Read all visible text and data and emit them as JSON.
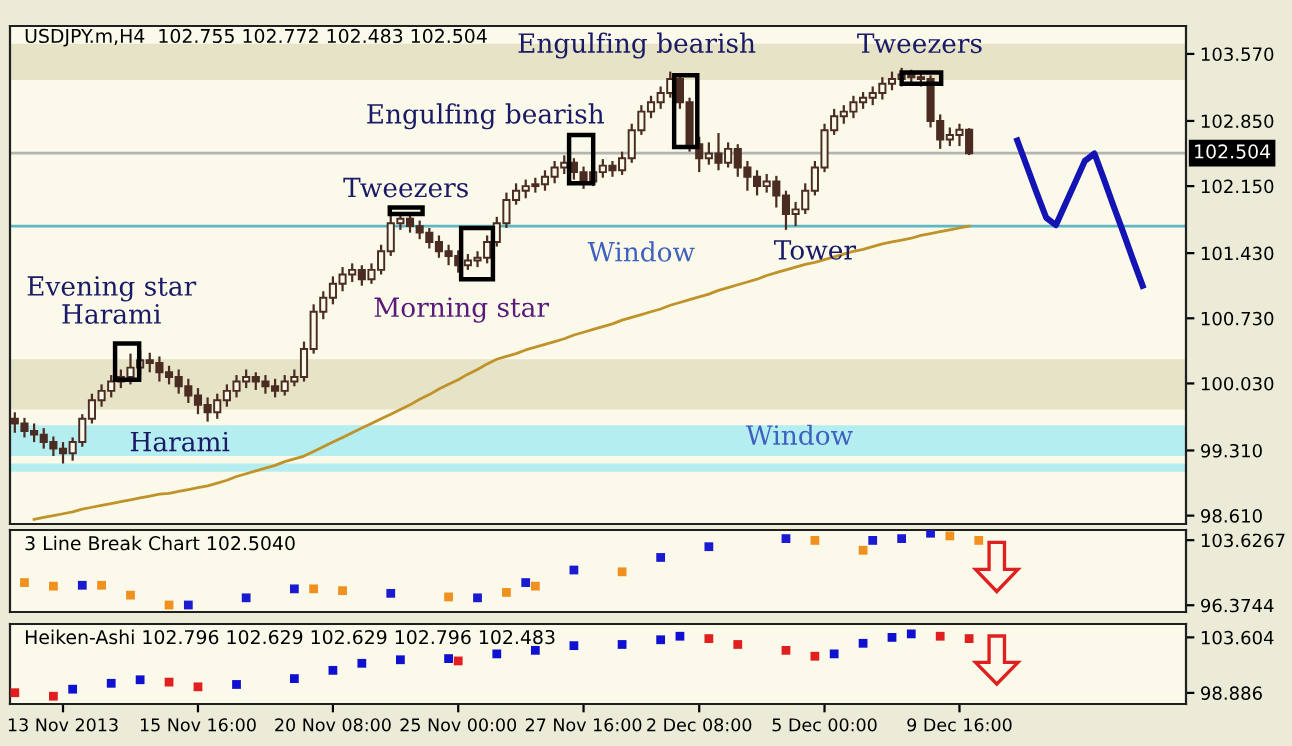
{
  "chart_data": [
    {
      "type": "candlestick",
      "title": "USDJPY.m,H4  102.755 102.772 102.483 102.504",
      "categories": [
        null,
        null,
        null,
        null,
        null,
        null,
        null,
        null,
        null,
        null,
        null,
        null,
        null,
        null,
        null,
        null,
        null,
        null,
        null,
        null,
        null,
        null,
        null,
        null,
        null,
        null,
        null,
        null,
        null,
        null,
        null,
        null,
        null,
        null,
        null,
        null,
        null,
        null,
        null,
        null,
        null,
        null,
        null,
        null,
        null,
        null,
        null,
        null,
        null,
        null,
        null,
        null,
        null,
        null,
        null,
        null,
        null,
        null,
        null,
        null,
        null,
        null,
        null,
        null,
        null,
        null,
        null,
        null,
        null,
        null,
        null,
        null,
        null,
        null,
        null,
        null,
        null,
        null,
        null,
        null,
        null,
        null,
        null,
        null,
        null,
        null,
        null,
        null,
        null,
        null,
        null,
        null,
        null,
        null,
        null,
        null,
        null,
        null,
        null,
        null,
        null,
        null,
        null,
        null,
        null,
        null,
        null,
        null,
        null,
        null,
        null,
        null,
        null,
        null,
        null,
        null,
        null,
        null,
        null,
        null,
        null,
        null
      ],
      "ylim": [
        98.52,
        103.87
      ],
      "yticks": [
        {
          "value": 98.61,
          "label": "98.610"
        },
        {
          "value": 99.31,
          "label": "99.310"
        },
        {
          "value": 100.03,
          "label": "100.030"
        },
        {
          "value": 100.73,
          "label": "100.730"
        },
        {
          "value": 101.43,
          "label": "101.430"
        },
        {
          "value": 102.15,
          "label": "102.150"
        },
        {
          "value": 102.85,
          "label": "102.850"
        },
        {
          "value": 103.57,
          "label": "103.570"
        }
      ],
      "tick_labels": "y",
      "series": [
        {
          "type": "line",
          "color": "#c0922a",
          "values": [
            null,
            null,
            98.57,
            98.59,
            98.61,
            98.63,
            98.65,
            98.68,
            98.7,
            98.72,
            98.74,
            98.76,
            98.78,
            98.8,
            98.82,
            98.84,
            98.85,
            98.87,
            98.89,
            98.91,
            98.93,
            98.96,
            98.99,
            99.03,
            99.06,
            99.09,
            99.12,
            99.15,
            99.19,
            99.22,
            99.25,
            99.3,
            99.35,
            99.4,
            99.45,
            99.5,
            99.55,
            99.6,
            99.65,
            99.7,
            99.75,
            99.8,
            99.86,
            99.91,
            99.97,
            100.02,
            100.07,
            100.13,
            100.18,
            100.24,
            100.29,
            100.32,
            100.35,
            100.39,
            100.42,
            100.45,
            100.48,
            100.51,
            100.55,
            100.58,
            100.61,
            100.64,
            100.67,
            100.71,
            100.74,
            100.77,
            100.8,
            100.83,
            100.87,
            100.9,
            100.93,
            100.96,
            100.99,
            101.03,
            101.06,
            101.09,
            101.12,
            101.15,
            101.19,
            101.22,
            101.25,
            101.28,
            101.31,
            101.33,
            101.36,
            101.39,
            101.42,
            101.45,
            101.47,
            101.5,
            101.53,
            101.55,
            101.57,
            101.59,
            101.62,
            101.64,
            101.66,
            101.68,
            101.7,
            101.72,
            null,
            null,
            null,
            null,
            null,
            null,
            null,
            null,
            null,
            null,
            null,
            null,
            null,
            null,
            null,
            null,
            null,
            null,
            null,
            null,
            null,
            null
          ]
        },
        {
          "type": "candlestick",
          "color": "#4a2c22",
          "ohlc": [
            [
              99.65,
              99.72,
              99.5,
              99.6
            ],
            [
              99.6,
              99.66,
              99.45,
              99.52
            ],
            [
              99.52,
              99.6,
              99.4,
              99.48
            ],
            [
              99.48,
              99.55,
              99.33,
              99.4
            ],
            [
              99.4,
              99.46,
              99.25,
              99.33
            ],
            [
              99.33,
              99.4,
              99.17,
              99.28
            ],
            [
              99.28,
              99.45,
              99.2,
              99.4
            ],
            [
              99.4,
              99.7,
              99.35,
              99.65
            ],
            [
              99.65,
              99.92,
              99.6,
              99.85
            ],
            [
              99.85,
              100.02,
              99.78,
              99.95
            ],
            [
              99.95,
              100.12,
              99.88,
              100.05
            ],
            [
              100.05,
              100.18,
              99.98,
              100.1
            ],
            [
              100.1,
              100.35,
              100.02,
              100.2
            ],
            [
              100.2,
              100.38,
              100.12,
              100.28
            ],
            [
              100.28,
              100.36,
              100.15,
              100.25
            ],
            [
              100.25,
              100.32,
              100.05,
              100.15
            ],
            [
              100.15,
              100.22,
              100.02,
              100.1
            ],
            [
              100.1,
              100.18,
              99.92,
              100.0
            ],
            [
              100.0,
              100.08,
              99.82,
              99.9
            ],
            [
              99.9,
              99.98,
              99.7,
              99.8
            ],
            [
              99.8,
              99.88,
              99.62,
              99.72
            ],
            [
              99.72,
              99.92,
              99.65,
              99.85
            ],
            [
              99.85,
              100.02,
              99.78,
              99.95
            ],
            [
              99.95,
              100.12,
              99.88,
              100.05
            ],
            [
              100.05,
              100.18,
              99.98,
              100.1
            ],
            [
              100.1,
              100.15,
              99.96,
              100.05
            ],
            [
              100.05,
              100.12,
              99.92,
              100.0
            ],
            [
              100.0,
              100.08,
              99.88,
              99.95
            ],
            [
              99.95,
              100.12,
              99.9,
              100.05
            ],
            [
              100.05,
              100.18,
              100.0,
              100.1
            ],
            [
              100.1,
              100.48,
              100.05,
              100.4
            ],
            [
              100.4,
              100.88,
              100.35,
              100.8
            ],
            [
              100.8,
              101.02,
              100.72,
              100.95
            ],
            [
              100.95,
              101.18,
              100.88,
              101.1
            ],
            [
              101.1,
              101.28,
              101.02,
              101.2
            ],
            [
              101.2,
              101.32,
              101.12,
              101.25
            ],
            [
              101.25,
              101.3,
              101.08,
              101.15
            ],
            [
              101.15,
              101.32,
              101.1,
              101.25
            ],
            [
              101.25,
              101.52,
              101.2,
              101.45
            ],
            [
              101.45,
              101.85,
              101.4,
              101.75
            ],
            [
              101.75,
              101.86,
              101.68,
              101.8
            ],
            [
              101.8,
              101.85,
              101.65,
              101.72
            ],
            [
              101.72,
              101.78,
              101.58,
              101.65
            ],
            [
              101.65,
              101.7,
              101.48,
              101.55
            ],
            [
              101.55,
              101.62,
              101.38,
              101.45
            ],
            [
              101.45,
              101.52,
              101.3,
              101.4
            ],
            [
              101.4,
              101.46,
              101.22,
              101.3
            ],
            [
              101.3,
              101.42,
              101.25,
              101.35
            ],
            [
              101.35,
              101.45,
              101.28,
              101.38
            ],
            [
              101.38,
              101.62,
              101.32,
              101.55
            ],
            [
              101.55,
              101.82,
              101.5,
              101.75
            ],
            [
              101.75,
              102.08,
              101.7,
              102.0
            ],
            [
              102.0,
              102.18,
              101.95,
              102.1
            ],
            [
              102.1,
              102.22,
              102.02,
              102.15
            ],
            [
              102.15,
              102.24,
              102.08,
              102.17
            ],
            [
              102.17,
              102.32,
              102.1,
              102.25
            ],
            [
              102.25,
              102.42,
              102.18,
              102.35
            ],
            [
              102.35,
              102.48,
              102.28,
              102.4
            ],
            [
              102.4,
              102.45,
              102.22,
              102.3
            ],
            [
              102.3,
              102.36,
              102.12,
              102.2
            ],
            [
              102.2,
              102.38,
              102.15,
              102.3
            ],
            [
              102.3,
              102.44,
              102.24,
              102.37
            ],
            [
              102.37,
              102.42,
              102.25,
              102.32
            ],
            [
              102.32,
              102.52,
              102.27,
              102.45
            ],
            [
              102.45,
              102.82,
              102.4,
              102.75
            ],
            [
              102.75,
              103.02,
              102.7,
              102.95
            ],
            [
              102.95,
              103.12,
              102.88,
              103.05
            ],
            [
              103.05,
              103.22,
              102.98,
              103.15
            ],
            [
              103.15,
              103.38,
              103.1,
              103.3
            ],
            [
              103.3,
              103.35,
              102.98,
              103.05
            ],
            [
              103.05,
              103.1,
              102.52,
              102.6
            ],
            [
              102.6,
              102.68,
              102.3,
              102.45
            ],
            [
              102.45,
              102.62,
              102.38,
              102.5
            ],
            [
              102.5,
              102.72,
              102.32,
              102.4
            ],
            [
              102.4,
              102.62,
              102.35,
              102.55
            ],
            [
              102.55,
              102.6,
              102.25,
              102.35
            ],
            [
              102.35,
              102.42,
              102.1,
              102.25
            ],
            [
              102.25,
              102.32,
              102.05,
              102.15
            ],
            [
              102.15,
              102.28,
              102.08,
              102.2
            ],
            [
              102.2,
              102.26,
              101.92,
              102.05
            ],
            [
              102.05,
              102.1,
              101.68,
              101.85
            ],
            [
              101.85,
              101.98,
              101.72,
              101.9
            ],
            [
              101.9,
              102.18,
              101.85,
              102.1
            ],
            [
              102.1,
              102.42,
              102.05,
              102.35
            ],
            [
              102.35,
              102.82,
              102.3,
              102.75
            ],
            [
              102.75,
              102.98,
              102.7,
              102.9
            ],
            [
              102.9,
              103.02,
              102.82,
              102.95
            ],
            [
              102.95,
              103.12,
              102.88,
              103.05
            ],
            [
              103.05,
              103.16,
              102.98,
              103.1
            ],
            [
              103.1,
              103.22,
              103.02,
              103.15
            ],
            [
              103.15,
              103.32,
              103.08,
              103.25
            ],
            [
              103.25,
              103.38,
              103.18,
              103.3
            ],
            [
              103.3,
              103.42,
              103.22,
              103.35
            ],
            [
              103.35,
              103.4,
              103.25,
              103.32
            ],
            [
              103.32,
              103.38,
              103.22,
              103.3
            ],
            [
              103.3,
              103.34,
              102.78,
              102.85
            ],
            [
              102.85,
              102.92,
              102.55,
              102.65
            ],
            [
              102.65,
              102.78,
              102.58,
              102.7
            ],
            [
              102.7,
              102.82,
              102.58,
              102.755
            ],
            [
              102.755,
              102.772,
              102.483,
              102.504
            ],
            null,
            null,
            null,
            null,
            null,
            null,
            null,
            null,
            null,
            null,
            null,
            null,
            null,
            null,
            null,
            null,
            null,
            null,
            null,
            null,
            null,
            null
          ]
        },
        {
          "type": "line",
          "color": "#1414b4",
          "values": [
            null,
            null,
            null,
            null,
            null,
            null,
            null,
            null,
            null,
            null,
            null,
            null,
            null,
            null,
            null,
            null,
            null,
            null,
            null,
            null,
            null,
            null,
            null,
            null,
            null,
            null,
            null,
            null,
            null,
            null,
            null,
            null,
            null,
            null,
            null,
            null,
            null,
            null,
            null,
            null,
            null,
            null,
            null,
            null,
            null,
            null,
            null,
            null,
            null,
            null,
            null,
            null,
            null,
            null,
            null,
            null,
            null,
            null,
            null,
            null,
            null,
            null,
            null,
            null,
            null,
            null,
            null,
            null,
            null,
            null,
            null,
            null,
            null,
            null,
            null,
            null,
            null,
            null,
            null,
            null,
            null,
            null,
            null,
            null,
            null,
            null,
            null,
            null,
            null,
            null,
            null,
            null,
            null,
            null,
            null,
            null,
            null,
            null,
            null,
            null,
            null,
            null,
            null,
            null,
            102.64,
            102.36,
            102.08,
            101.81,
            101.73,
            101.96,
            102.19,
            102.42,
            102.5,
            102.22,
            101.93,
            101.65,
            101.36,
            101.08,
            null,
            null,
            null,
            null
          ]
        }
      ],
      "bands": [
        {
          "axis": "y",
          "from": 103.29,
          "to": 103.68,
          "color": "#e6e3c6"
        },
        {
          "axis": "y",
          "from": 99.75,
          "to": 100.29,
          "color": "#e6e3c6"
        },
        {
          "axis": "y",
          "from": 99.25,
          "to": 99.58,
          "color": "#b4eef0"
        },
        {
          "axis": "y",
          "from": 99.08,
          "to": 99.17,
          "color": "#b4eef0"
        }
      ],
      "ref_lines": [
        {
          "axis": "y",
          "value": 102.504,
          "label": "102.504",
          "color": "#b4b4b4"
        },
        {
          "axis": "y",
          "value": 101.72,
          "color": "#5fb7c3"
        }
      ],
      "annotations": [
        "Evening star\nHarami",
        "Harami",
        "Tweezers",
        "Morning star",
        "Engulfing bearish",
        "Engulfing bearish",
        "Window",
        "Tower",
        "Tweezers",
        "Window"
      ]
    },
    {
      "type": "scatter",
      "title": "3 Line Break Chart 102.5040",
      "marker": "square",
      "categories": [
        null,
        null,
        null,
        null,
        null,
        null,
        null,
        null,
        null,
        null,
        null,
        null,
        null,
        null,
        null,
        null,
        null,
        null,
        null,
        null,
        null,
        null,
        null,
        null,
        null,
        null,
        null,
        null,
        null,
        null,
        null,
        null,
        null,
        null,
        null,
        null,
        null,
        null,
        null,
        null,
        null,
        null,
        null,
        null,
        null,
        null,
        null,
        null,
        null,
        null,
        null,
        null,
        null,
        null,
        null,
        null,
        null,
        null,
        null,
        null,
        null,
        null,
        null,
        null,
        null,
        null,
        null,
        null,
        null,
        null,
        null,
        null,
        null,
        null,
        null,
        null,
        null,
        null,
        null,
        null,
        null,
        null,
        null,
        null,
        null,
        null,
        null,
        null,
        null,
        null,
        null,
        null,
        null,
        null,
        null,
        null,
        null,
        null,
        null,
        null,
        null,
        null,
        null,
        null,
        null,
        null,
        null,
        null,
        null,
        null,
        null,
        null,
        null,
        null,
        null,
        null,
        null,
        null,
        null,
        null,
        null,
        null
      ],
      "ylim": [
        95.62,
        104.76
      ],
      "yticks": [
        96.3744,
        103.6267
      ],
      "tick_labels": "y",
      "series": [
        {
          "color": "#f0901e",
          "values": [
            null,
            98.9,
            null,
            null,
            98.5,
            null,
            null,
            null,
            null,
            98.6,
            null,
            null,
            97.5,
            null,
            null,
            null,
            96.4,
            null,
            null,
            null,
            null,
            null,
            null,
            null,
            null,
            null,
            null,
            null,
            null,
            null,
            null,
            98.2,
            null,
            null,
            98.0,
            null,
            null,
            null,
            null,
            null,
            null,
            null,
            null,
            null,
            null,
            97.3,
            null,
            null,
            null,
            null,
            null,
            97.8,
            null,
            null,
            98.5,
            null,
            null,
            null,
            null,
            null,
            null,
            null,
            null,
            100.1,
            null,
            null,
            null,
            null,
            null,
            null,
            null,
            null,
            null,
            null,
            null,
            null,
            null,
            null,
            null,
            null,
            null,
            null,
            null,
            103.6,
            null,
            null,
            null,
            null,
            102.5,
            null,
            null,
            null,
            null,
            null,
            null,
            null,
            null,
            104.1,
            null,
            null,
            103.6,
            null,
            null,
            null,
            null,
            null,
            null,
            null,
            null,
            null,
            null,
            null,
            null,
            null,
            null,
            null,
            null,
            null,
            null,
            null,
            null,
            null
          ]
        },
        {
          "color": "#1a1ad0",
          "values": [
            null,
            null,
            null,
            null,
            null,
            null,
            null,
            98.6,
            null,
            null,
            null,
            null,
            null,
            null,
            null,
            null,
            null,
            null,
            96.4,
            null,
            null,
            null,
            null,
            null,
            97.2,
            null,
            null,
            null,
            null,
            98.2,
            null,
            null,
            null,
            null,
            null,
            null,
            null,
            null,
            null,
            97.7,
            null,
            null,
            null,
            null,
            null,
            null,
            null,
            null,
            97.2,
            null,
            null,
            null,
            null,
            98.9,
            null,
            null,
            null,
            null,
            100.3,
            null,
            null,
            null,
            null,
            null,
            null,
            null,
            null,
            101.7,
            null,
            null,
            null,
            null,
            102.9,
            null,
            null,
            null,
            null,
            null,
            null,
            null,
            103.8,
            null,
            null,
            null,
            null,
            null,
            null,
            null,
            null,
            103.6,
            null,
            null,
            103.8,
            null,
            null,
            104.4,
            null,
            null,
            null,
            null,
            null,
            null,
            null,
            null,
            null,
            null,
            null,
            null,
            null,
            null,
            null,
            null,
            null,
            null,
            null,
            null,
            null,
            null,
            null,
            null,
            null,
            null
          ]
        }
      ]
    },
    {
      "type": "scatter",
      "title": "Heiken-Ashi 102.796 102.629 102.629 102.796 102.483",
      "marker": "square",
      "categories": [
        null,
        null,
        null,
        null,
        null,
        "13 Nov 2013",
        null,
        null,
        null,
        null,
        null,
        null,
        null,
        null,
        null,
        null,
        null,
        null,
        null,
        "15 Nov 16:00",
        null,
        null,
        null,
        null,
        null,
        null,
        null,
        null,
        null,
        null,
        null,
        null,
        null,
        "20 Nov 08:00",
        null,
        null,
        null,
        null,
        null,
        null,
        null,
        null,
        null,
        null,
        null,
        null,
        "25 Nov 00:00",
        null,
        null,
        null,
        null,
        null,
        null,
        null,
        null,
        null,
        null,
        null,
        null,
        "27 Nov 16:00",
        null,
        null,
        null,
        null,
        null,
        null,
        null,
        null,
        null,
        null,
        null,
        "2 Dec 08:00",
        null,
        null,
        null,
        null,
        null,
        null,
        null,
        null,
        null,
        null,
        null,
        null,
        "5 Dec 00:00",
        null,
        null,
        null,
        null,
        null,
        null,
        null,
        null,
        null,
        null,
        null,
        null,
        null,
        "9 Dec 16:00",
        null,
        null,
        null,
        null,
        null,
        null,
        null,
        null,
        null,
        null,
        null,
        null,
        null,
        null,
        null,
        null,
        null,
        null,
        null,
        null,
        null,
        null,
        null
      ],
      "ylim": [
        97.94,
        104.74
      ],
      "yticks": [
        98.886,
        103.604
      ],
      "series": [
        {
          "color": "#e02020",
          "values": [
            98.9,
            null,
            null,
            null,
            98.6,
            null,
            null,
            null,
            null,
            null,
            null,
            null,
            null,
            null,
            null,
            null,
            99.8,
            null,
            null,
            99.4,
            null,
            null,
            null,
            null,
            null,
            null,
            null,
            null,
            null,
            null,
            null,
            null,
            null,
            null,
            null,
            null,
            null,
            null,
            null,
            null,
            null,
            null,
            null,
            null,
            null,
            null,
            101.6,
            null,
            null,
            null,
            null,
            null,
            null,
            null,
            null,
            null,
            null,
            null,
            null,
            null,
            null,
            null,
            null,
            null,
            null,
            null,
            null,
            null,
            null,
            null,
            null,
            null,
            103.5,
            null,
            null,
            103.0,
            null,
            null,
            null,
            null,
            102.5,
            null,
            null,
            102.0,
            null,
            null,
            null,
            null,
            null,
            null,
            null,
            null,
            null,
            null,
            null,
            null,
            103.7,
            null,
            null,
            103.5,
            null,
            null,
            null,
            null,
            null,
            null,
            null,
            null,
            null,
            null,
            null,
            null,
            null,
            null,
            null,
            null,
            null,
            null,
            null,
            null,
            null,
            null
          ]
        },
        {
          "color": "#1010d0",
          "values": [
            null,
            null,
            null,
            null,
            null,
            null,
            99.2,
            null,
            null,
            null,
            99.7,
            null,
            null,
            100.0,
            null,
            null,
            null,
            null,
            null,
            null,
            null,
            null,
            null,
            99.6,
            null,
            null,
            null,
            null,
            null,
            100.1,
            null,
            null,
            null,
            100.8,
            null,
            null,
            101.4,
            null,
            null,
            null,
            101.7,
            null,
            null,
            null,
            null,
            101.8,
            null,
            null,
            null,
            null,
            102.2,
            null,
            null,
            null,
            102.5,
            null,
            null,
            null,
            102.9,
            null,
            null,
            null,
            null,
            103.0,
            null,
            null,
            null,
            103.4,
            null,
            103.7,
            null,
            null,
            null,
            null,
            null,
            null,
            null,
            null,
            null,
            null,
            null,
            null,
            null,
            null,
            null,
            102.2,
            null,
            null,
            103.1,
            null,
            null,
            103.6,
            null,
            103.9,
            null,
            null,
            null,
            null,
            null,
            null,
            null,
            null,
            null,
            null,
            null,
            null,
            null,
            null,
            null,
            null,
            null,
            null,
            null,
            null,
            null,
            null,
            null,
            null,
            null,
            null,
            null,
            null
          ]
        }
      ]
    }
  ]
}
